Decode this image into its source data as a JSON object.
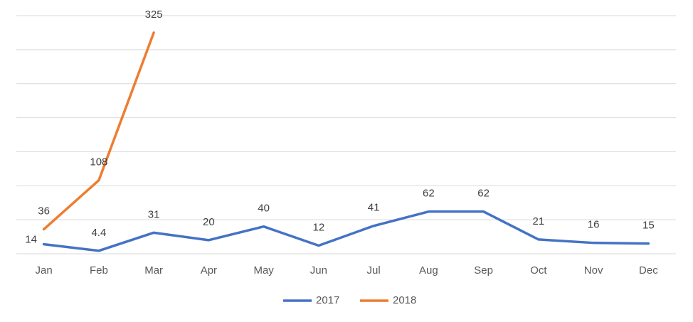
{
  "chart_data": {
    "type": "line",
    "categories": [
      "Jan",
      "Feb",
      "Mar",
      "Apr",
      "May",
      "Jun",
      "Jul",
      "Aug",
      "Sep",
      "Oct",
      "Nov",
      "Dec"
    ],
    "series": [
      {
        "name": "2017",
        "color": "#4472c4",
        "values": [
          14,
          4.4,
          31,
          20,
          40,
          12,
          41,
          62,
          62,
          21,
          16,
          15
        ]
      },
      {
        "name": "2018",
        "color": "#ed7d31",
        "values": [
          36,
          108,
          325,
          null,
          null,
          null,
          null,
          null,
          null,
          null,
          null,
          null
        ]
      }
    ],
    "ylim": [
      0,
      350
    ],
    "yticks": [
      0,
      50,
      100,
      150,
      200,
      250,
      300,
      350
    ],
    "grid": true,
    "legend": "bottom"
  }
}
